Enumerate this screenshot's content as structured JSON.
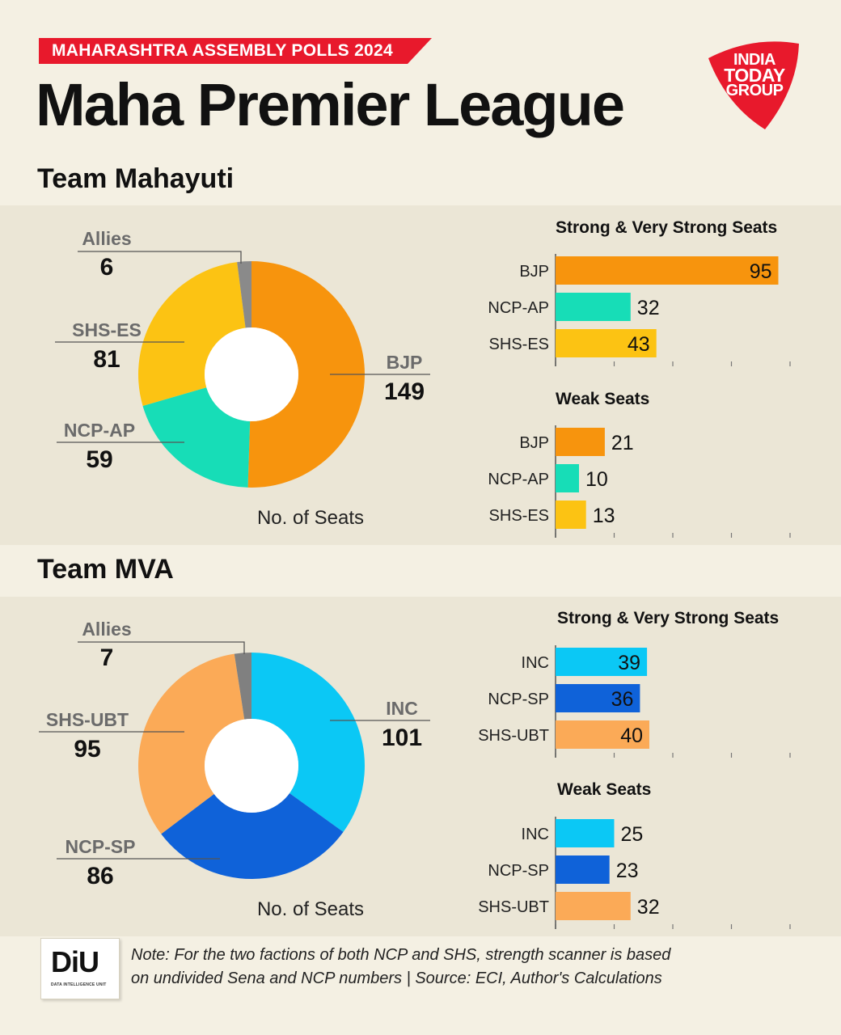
{
  "header": {
    "kicker": "MAHARASHTRA ASSEMBLY POLLS 2024",
    "title": "Maha Premier League",
    "brand": [
      "INDIA",
      "TODAY",
      "GROUP"
    ],
    "brand_color": "#e8192c"
  },
  "chart_data": [
    {
      "name": "Team Mahayuti",
      "donut": {
        "type": "pie",
        "caption": "No. of Seats",
        "slices": [
          {
            "label": "BJP",
            "value": 149,
            "color": "#f7940d"
          },
          {
            "label": "NCP-AP",
            "value": 59,
            "color": "#17ddb7"
          },
          {
            "label": "SHS-ES",
            "value": 81,
            "color": "#fcc313"
          },
          {
            "label": "Allies",
            "value": 6,
            "color": "#8a8a8a"
          }
        ]
      },
      "strong": {
        "type": "bar",
        "title": "Strong & Very Strong Seats",
        "categories": [
          "BJP",
          "NCP-AP",
          "SHS-ES"
        ],
        "values": [
          95,
          32,
          43
        ],
        "colors": [
          "#f7940d",
          "#17ddb7",
          "#fcc313"
        ]
      },
      "weak": {
        "type": "bar",
        "title": "Weak Seats",
        "categories": [
          "BJP",
          "NCP-AP",
          "SHS-ES"
        ],
        "values": [
          21,
          10,
          13
        ],
        "colors": [
          "#f7940d",
          "#17ddb7",
          "#fcc313"
        ]
      }
    },
    {
      "name": "Team MVA",
      "donut": {
        "type": "pie",
        "caption": "No. of Seats",
        "slices": [
          {
            "label": "INC",
            "value": 101,
            "color": "#0bc8f5"
          },
          {
            "label": "NCP-SP",
            "value": 86,
            "color": "#0f62d9"
          },
          {
            "label": "SHS-UBT",
            "value": 95,
            "color": "#fbaa57"
          },
          {
            "label": "Allies",
            "value": 7,
            "color": "#808080"
          }
        ]
      },
      "strong": {
        "type": "bar",
        "title": "Strong & Very Strong Seats",
        "categories": [
          "INC",
          "NCP-SP",
          "SHS-UBT"
        ],
        "values": [
          39,
          36,
          40
        ],
        "colors": [
          "#0bc8f5",
          "#0f62d9",
          "#fbaa57"
        ]
      },
      "weak": {
        "type": "bar",
        "title": "Weak Seats",
        "categories": [
          "INC",
          "NCP-SP",
          "SHS-UBT"
        ],
        "values": [
          25,
          23,
          32
        ],
        "colors": [
          "#0bc8f5",
          "#0f62d9",
          "#fbaa57"
        ]
      }
    }
  ],
  "footer": {
    "logo_text": "DiU",
    "logo_sub": "DATA INTELLIGENCE UNIT",
    "note_line1": "Note: For the two factions of both NCP and SHS, strength scanner is based",
    "note_line2": "on undivided Sena and NCP numbers  |  Source: ECI, Author's Calculations"
  }
}
